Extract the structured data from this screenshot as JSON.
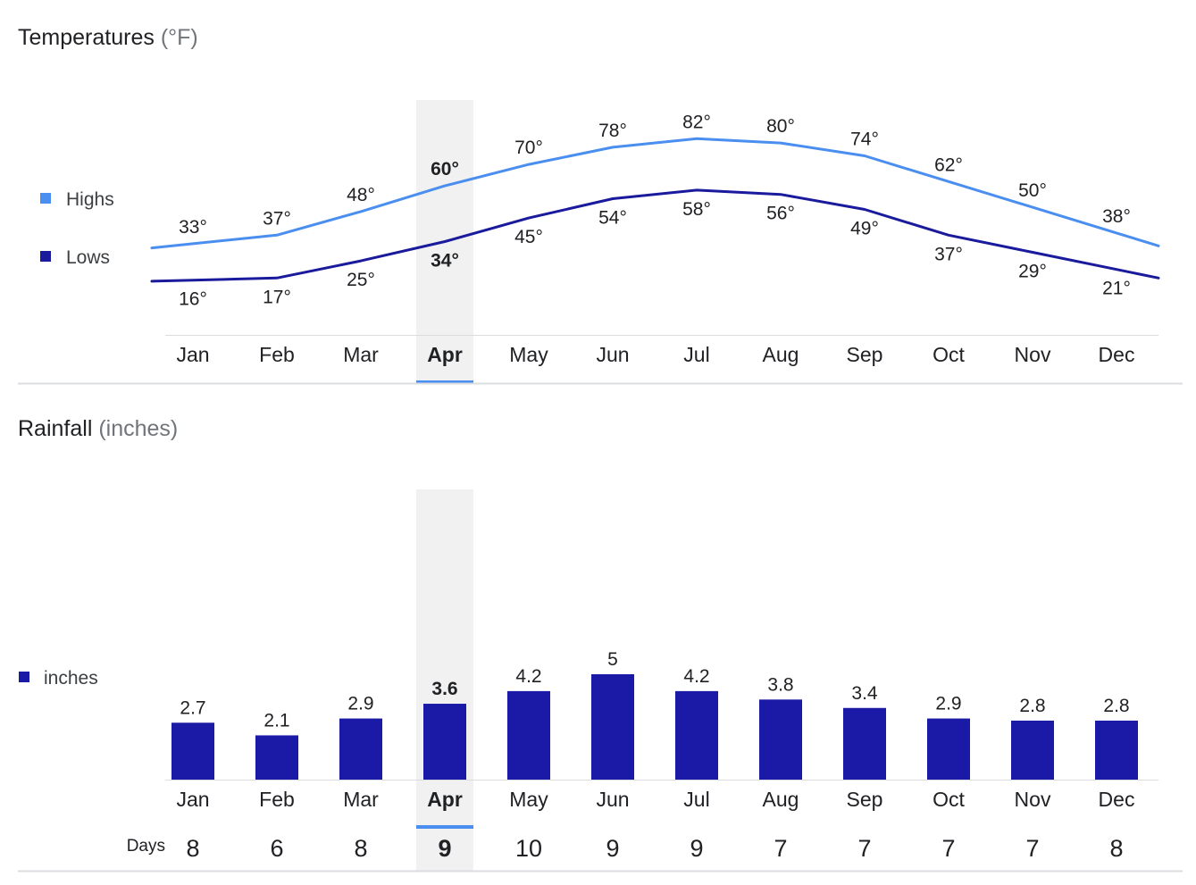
{
  "temperatures": {
    "title": "Temperatures",
    "unit": "(°F)",
    "legend": {
      "highs": "Highs",
      "lows": "Lows"
    },
    "selected_month": "Apr"
  },
  "rainfall": {
    "title": "Rainfall",
    "unit": "(inches)",
    "legend": {
      "inches": "inches"
    },
    "days_label": "Days",
    "selected_month": "Apr"
  },
  "colors": {
    "highs": "#4a8ef0",
    "lows": "#1a1a9c",
    "bars": "#1a1aa6",
    "highlight": "#f1f1f1",
    "selected_underline": "#4a8ef0",
    "axis": "#dadce0"
  },
  "chart_data": [
    {
      "type": "line",
      "title": "Temperatures (°F)",
      "categories": [
        "Jan",
        "Feb",
        "Mar",
        "Apr",
        "May",
        "Jun",
        "Jul",
        "Aug",
        "Sep",
        "Oct",
        "Nov",
        "Dec"
      ],
      "series": [
        {
          "name": "Highs",
          "values": [
            33,
            37,
            48,
            60,
            70,
            78,
            82,
            80,
            74,
            62,
            50,
            38
          ],
          "labels": [
            "33°",
            "37°",
            "48°",
            "60°",
            "70°",
            "78°",
            "82°",
            "80°",
            "74°",
            "62°",
            "50°",
            "38°"
          ]
        },
        {
          "name": "Lows",
          "values": [
            16,
            17,
            25,
            34,
            45,
            54,
            58,
            56,
            49,
            37,
            29,
            21
          ],
          "labels": [
            "16°",
            "17°",
            "25°",
            "34°",
            "45°",
            "54°",
            "58°",
            "56°",
            "49°",
            "37°",
            "29°",
            "21°"
          ]
        }
      ],
      "ylim": [
        0,
        100
      ],
      "xlabel": "",
      "ylabel": "",
      "legend": "left"
    },
    {
      "type": "bar",
      "title": "Rainfall (inches)",
      "categories": [
        "Jan",
        "Feb",
        "Mar",
        "Apr",
        "May",
        "Jun",
        "Jul",
        "Aug",
        "Sep",
        "Oct",
        "Nov",
        "Dec"
      ],
      "values": [
        2.7,
        2.1,
        2.9,
        3.6,
        4.2,
        5,
        4.2,
        3.8,
        3.4,
        2.9,
        2.8,
        2.8
      ],
      "value_labels": [
        "2.7",
        "2.1",
        "2.9",
        "3.6",
        "4.2",
        "5",
        "4.2",
        "3.8",
        "3.4",
        "2.9",
        "2.8",
        "2.8"
      ],
      "days": [
        "8",
        "6",
        "8",
        "9",
        "10",
        "9",
        "9",
        "7",
        "7",
        "7",
        "7",
        "8"
      ],
      "ylim": [
        0,
        10
      ],
      "xlabel": "",
      "ylabel": "",
      "legend": "left"
    }
  ]
}
